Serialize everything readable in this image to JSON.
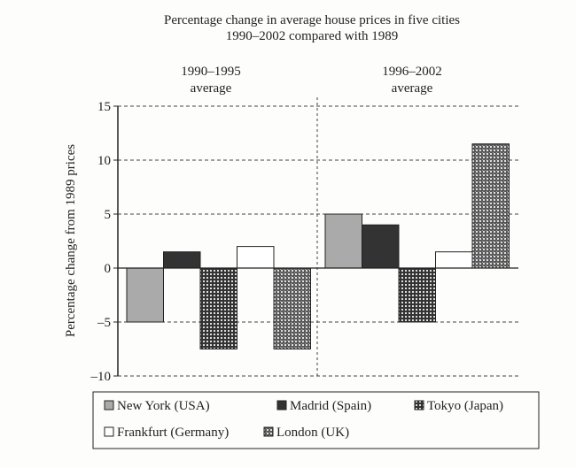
{
  "chart_data": {
    "type": "bar",
    "title": "Percentage change in average house prices in five cities",
    "subtitle": "1990–2002 compared with 1989",
    "ylabel": "Percentage change from 1989 prices",
    "xlabel": "",
    "ylim": [
      -10,
      15
    ],
    "yticks": [
      15,
      10,
      5,
      0,
      -5,
      -10
    ],
    "ytick_labels": [
      "15",
      "10",
      "5",
      "0",
      "–5",
      "–10"
    ],
    "grid": "horizontal dashed",
    "categories": [
      {
        "line1": "1990–1995",
        "line2": "average"
      },
      {
        "line1": "1996–2002",
        "line2": "average"
      }
    ],
    "series": [
      {
        "name": "New York (USA)",
        "values": [
          -5,
          5
        ],
        "fill": "gray"
      },
      {
        "name": "Madrid (Spain)",
        "values": [
          1.5,
          4
        ],
        "fill": "black"
      },
      {
        "name": "Tokyo (Japan)",
        "values": [
          -7.5,
          -5
        ],
        "fill": "grid"
      },
      {
        "name": "Frankfurt (Germany)",
        "values": [
          2,
          1.5
        ],
        "fill": "white"
      },
      {
        "name": "London (UK)",
        "values": [
          -7.5,
          11.5
        ],
        "fill": "dots"
      }
    ],
    "legend_position": "bottom"
  }
}
